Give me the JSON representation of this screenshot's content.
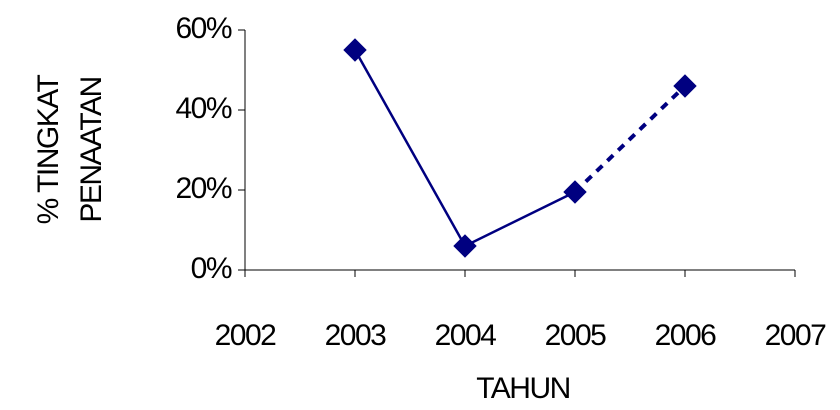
{
  "chart_data": {
    "type": "line",
    "title": "",
    "xlabel": "TAHUN",
    "ylabel_lines": [
      "% TINGKAT",
      "PENAATAN"
    ],
    "x_ticks": [
      "2002",
      "2003",
      "2004",
      "2005",
      "2006",
      "2007"
    ],
    "y_ticks": [
      "0%",
      "20%",
      "40%",
      "60%"
    ],
    "xlim": [
      2002,
      2007
    ],
    "ylim": [
      0,
      60
    ],
    "grid": false,
    "legend": "none",
    "color": "#000080",
    "series": [
      {
        "x": [
          2003,
          2004,
          2005
        ],
        "y": [
          55,
          6,
          19.5
        ],
        "line": "solid"
      },
      {
        "x": [
          2005,
          2006
        ],
        "y": [
          19.5,
          46
        ],
        "line": "dotted"
      }
    ],
    "points": {
      "x": [
        2003,
        2004,
        2005,
        2006
      ],
      "y": [
        55,
        6,
        19.5,
        46
      ]
    }
  }
}
